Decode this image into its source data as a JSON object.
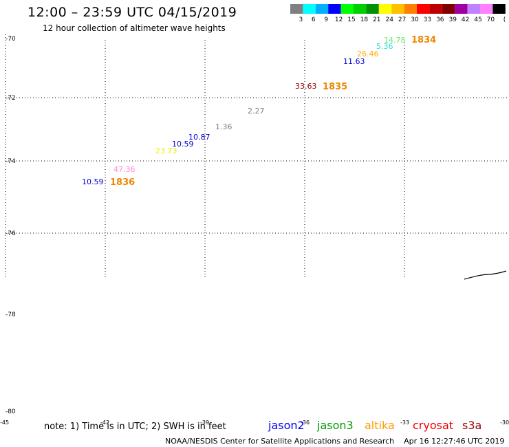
{
  "header": {
    "title": "12:00 – 23:59 UTC 04/15/2019",
    "subtitle": "12 hour collection of altimeter wave heights"
  },
  "colorbar": {
    "colors": [
      "#808080",
      "#00ffff",
      "#00b0ff",
      "#0000ff",
      "#00ff00",
      "#00d000",
      "#009000",
      "#ffff00",
      "#ffc000",
      "#ff8000",
      "#ff0000",
      "#c00000",
      "#800000",
      "#a000a0",
      "#c080ff",
      "#ff80ff",
      "#000000"
    ],
    "labels": [
      "3",
      "6",
      "9",
      "12",
      "15",
      "18",
      "21",
      "24",
      "27",
      "30",
      "33",
      "36",
      "39",
      "42",
      "45",
      "70",
      "(ft)"
    ]
  },
  "map": {
    "lat_labels": [
      "-70",
      "-72",
      "-74",
      "-76",
      "-78",
      "-80"
    ],
    "lon_labels": [
      "-45",
      "-42",
      "-39",
      "-36",
      "-33",
      "-30"
    ],
    "observations": [
      {
        "value": "14.78",
        "color": "#66ee66"
      },
      {
        "value": "5.36",
        "color": "#22dddd"
      },
      {
        "value": "26.46",
        "color": "#ffaa00"
      },
      {
        "value": "11.63",
        "color": "#0000cc"
      },
      {
        "value": "33.63",
        "color": "#990000"
      },
      {
        "value": "2.27",
        "color": "#808080"
      },
      {
        "value": "1.36",
        "color": "#808080"
      },
      {
        "value": "10.87",
        "color": "#0000cc"
      },
      {
        "value": "10.59",
        "color": "#0000cc"
      },
      {
        "value": "23.73",
        "color": "#eeee00"
      },
      {
        "value": "47.36",
        "color": "#ff88dd"
      },
      {
        "value": "10.59",
        "color": "#0000cc"
      }
    ],
    "pass_numbers": [
      {
        "value": "1834",
        "color": "#ee8800"
      },
      {
        "value": "1835",
        "color": "#ee8800"
      },
      {
        "value": "1836",
        "color": "#ee8800"
      }
    ]
  },
  "footer": {
    "note": "note: 1) Time is in UTC; 2) SWH is in feet",
    "satellites": [
      {
        "name": "jason2",
        "color": "#0000ee"
      },
      {
        "name": "jason3",
        "color": "#009900"
      },
      {
        "name": "altika",
        "color": "#ff9900"
      },
      {
        "name": "cryosat",
        "color": "#ee0000"
      },
      {
        "name": "s3a",
        "color": "#990000"
      }
    ],
    "credit": "NOAA/NESDIS Center for Satellite Applications and Research",
    "timestamp": "Apr 16 12:27:46 UTC 2019"
  }
}
